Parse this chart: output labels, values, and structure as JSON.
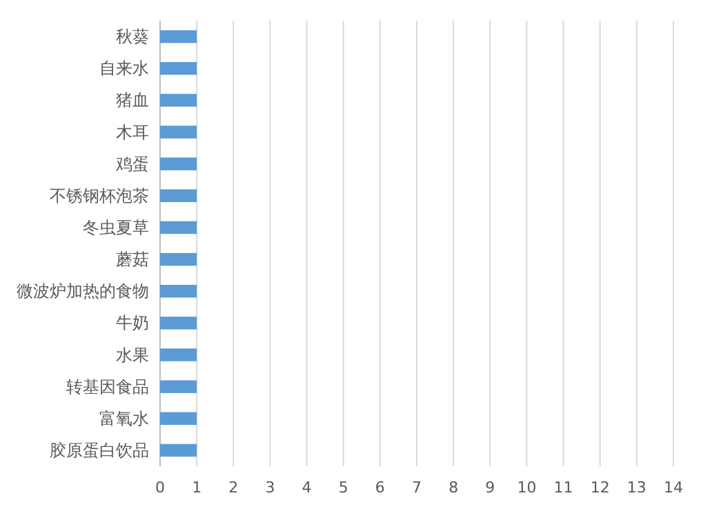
{
  "chart_data": {
    "type": "bar",
    "orientation": "horizontal",
    "categories": [
      "秋葵",
      "自来水",
      "猪血",
      "木耳",
      "鸡蛋",
      "不锈钢杯泡茶",
      "冬虫夏草",
      "蘑菇",
      "微波炉加热的食物",
      "牛奶",
      "水果",
      "转基因食品",
      "富氧水",
      "胶原蛋白饮品"
    ],
    "values": [
      1,
      1,
      1,
      1,
      1,
      1,
      1,
      1,
      1,
      1,
      1,
      1,
      1,
      1
    ],
    "color": "#5b9bd5",
    "xlim": [
      0,
      14
    ],
    "xticks": [
      0,
      1,
      2,
      3,
      4,
      5,
      6,
      7,
      8,
      9,
      10,
      11,
      12,
      13,
      14
    ],
    "grid": "x"
  }
}
